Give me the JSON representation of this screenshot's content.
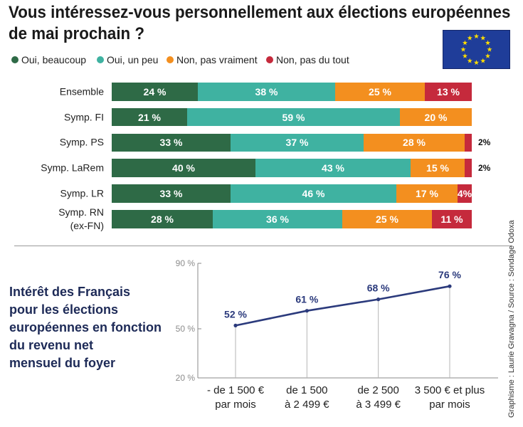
{
  "chart_data": [
    {
      "type": "bar",
      "orientation": "horizontal",
      "stacked": true,
      "title": "Vous intéressez-vous personnellement aux élections européennes\nde mai prochain ?",
      "categories": [
        "Ensemble",
        "Symp. FI",
        "Symp. PS",
        "Symp. LaRem",
        "Symp. LR",
        "Symp. RN\n(ex-FN)"
      ],
      "series": [
        {
          "name": "Oui, beaucoup",
          "color": "#2e6a46",
          "values": [
            24,
            21,
            33,
            40,
            33,
            28
          ],
          "labels": [
            "24 %",
            "21 %",
            "33 %",
            "40 %",
            "33 %",
            "28 %"
          ]
        },
        {
          "name": "Oui, un peu",
          "color": "#3fb2a1",
          "values": [
            38,
            59,
            37,
            43,
            46,
            36
          ],
          "labels": [
            "38 %",
            "59 %",
            "37 %",
            "43 %",
            "46 %",
            "36 %"
          ]
        },
        {
          "name": "Non, pas vraiment",
          "color": "#f38f1f",
          "values": [
            25,
            20,
            28,
            15,
            17,
            25
          ],
          "labels": [
            "25 %",
            "20 %",
            "28 %",
            "15 %",
            "17 %",
            "25 %"
          ]
        },
        {
          "name": "Non, pas du tout",
          "color": "#c52a3c",
          "values": [
            13,
            0,
            2,
            2,
            4,
            11
          ],
          "labels": [
            "13 %",
            null,
            "2%",
            "2%",
            "4%",
            "11 %"
          ]
        }
      ],
      "xlim": [
        0,
        100
      ],
      "legend": "top"
    },
    {
      "type": "line",
      "title": "Intérêt des Français\npour les élections\neuropéennes en fonction\ndu revenu net\nmensuel du foyer",
      "categories": [
        [
          "- de 1 500 €",
          "par mois"
        ],
        [
          "de 1 500",
          "à 2 499 €"
        ],
        [
          "de 2 500",
          "à 3 499 €"
        ],
        [
          "3 500 € et plus",
          "par mois"
        ]
      ],
      "values": [
        52,
        61,
        68,
        76
      ],
      "value_labels": [
        "52 %",
        "61 %",
        "68 %",
        "76 %"
      ],
      "ylim": [
        20,
        90
      ],
      "yticks": [
        20,
        50,
        90
      ],
      "ytick_labels": [
        "20 %",
        "50 %",
        "90 %"
      ],
      "color": "#2b3a7c"
    }
  ],
  "credit": "Graphisme : Laurie Gravagna / Source : Sondage Odoxa",
  "flag": {
    "background": "#1f3d99",
    "star_color": "#ffdd00",
    "stars": 12
  }
}
